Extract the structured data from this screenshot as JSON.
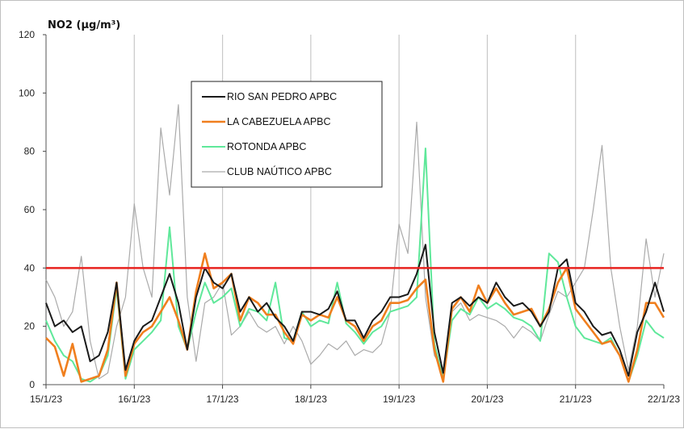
{
  "chart_data": {
    "type": "line",
    "title": "NO2 (µg/m³)",
    "xlabel": "",
    "ylabel": "",
    "ylim": [
      0,
      120
    ],
    "yticks": [
      0,
      20,
      40,
      60,
      80,
      100,
      120
    ],
    "xlim": [
      0,
      7
    ],
    "xtick_labels": [
      "15/1/23",
      "16/1/23",
      "17/1/23",
      "18/1/23",
      "19/1/23",
      "20/1/23",
      "21/1/23",
      "22/1/23"
    ],
    "grid": "vertical",
    "legend_position": "top-left",
    "threshold": {
      "value": 40,
      "color": "#e8231f"
    },
    "series": [
      {
        "name": "RIO SAN PEDRO APBC",
        "color": "#1a1a1a",
        "x": [
          0,
          0.1,
          0.2,
          0.3,
          0.4,
          0.5,
          0.6,
          0.7,
          0.8,
          0.9,
          1,
          1.1,
          1.2,
          1.3,
          1.4,
          1.5,
          1.6,
          1.7,
          1.8,
          1.9,
          2,
          2.1,
          2.2,
          2.3,
          2.4,
          2.5,
          2.6,
          2.7,
          2.8,
          2.9,
          3,
          3.1,
          3.2,
          3.3,
          3.4,
          3.5,
          3.6,
          3.7,
          3.8,
          3.9,
          4,
          4.1,
          4.2,
          4.3,
          4.4,
          4.5,
          4.6,
          4.7,
          4.8,
          4.9,
          5,
          5.1,
          5.2,
          5.3,
          5.4,
          5.5,
          5.6,
          5.7,
          5.8,
          5.9,
          6,
          6.1,
          6.2,
          6.3,
          6.4,
          6.5,
          6.6,
          6.7,
          6.8,
          6.9,
          7
        ],
        "values": [
          28,
          20,
          22,
          18,
          20,
          8,
          10,
          18,
          35,
          5,
          15,
          20,
          22,
          30,
          38,
          28,
          12,
          30,
          40,
          35,
          33,
          38,
          25,
          30,
          25,
          28,
          23,
          20,
          15,
          25,
          25,
          24,
          26,
          32,
          22,
          22,
          16,
          22,
          25,
          30,
          30,
          31,
          38,
          48,
          18,
          4,
          28,
          30,
          27,
          30,
          28,
          35,
          30,
          27,
          28,
          25,
          20,
          25,
          40,
          43,
          28,
          25,
          20,
          17,
          18,
          12,
          3,
          18,
          25,
          35,
          25
        ]
      },
      {
        "name": "LA CABEZUELA APBC",
        "color": "#f07f1e",
        "x": [
          0,
          0.1,
          0.2,
          0.3,
          0.4,
          0.5,
          0.6,
          0.7,
          0.8,
          0.9,
          1,
          1.1,
          1.2,
          1.3,
          1.4,
          1.5,
          1.6,
          1.7,
          1.8,
          1.9,
          2,
          2.1,
          2.2,
          2.3,
          2.4,
          2.5,
          2.6,
          2.7,
          2.8,
          2.9,
          3,
          3.1,
          3.2,
          3.3,
          3.4,
          3.5,
          3.6,
          3.7,
          3.8,
          3.9,
          4,
          4.1,
          4.2,
          4.3,
          4.4,
          4.5,
          4.6,
          4.7,
          4.8,
          4.9,
          5,
          5.1,
          5.2,
          5.3,
          5.4,
          5.5,
          5.6,
          5.7,
          5.8,
          5.9,
          6,
          6.1,
          6.2,
          6.3,
          6.4,
          6.5,
          6.6,
          6.7,
          6.8,
          6.9,
          7
        ],
        "values": [
          16,
          13,
          3,
          14,
          1,
          2,
          3,
          12,
          35,
          3,
          14,
          18,
          20,
          25,
          30,
          22,
          12,
          32,
          45,
          33,
          35,
          38,
          22,
          30,
          28,
          24,
          24,
          18,
          14,
          24,
          22,
          24,
          23,
          30,
          22,
          20,
          15,
          20,
          22,
          28,
          28,
          29,
          33,
          36,
          12,
          1,
          26,
          30,
          25,
          34,
          28,
          33,
          28,
          24,
          25,
          26,
          20,
          26,
          35,
          40,
          26,
          22,
          18,
          14,
          15,
          10,
          1,
          12,
          28,
          28,
          23
        ]
      },
      {
        "name": "ROTONDA APBC",
        "color": "#5fe89a",
        "x": [
          0,
          0.1,
          0.2,
          0.3,
          0.4,
          0.5,
          0.6,
          0.7,
          0.8,
          0.9,
          1,
          1.1,
          1.2,
          1.3,
          1.4,
          1.5,
          1.6,
          1.7,
          1.8,
          1.9,
          2,
          2.1,
          2.2,
          2.3,
          2.4,
          2.5,
          2.6,
          2.7,
          2.8,
          2.9,
          3,
          3.1,
          3.2,
          3.3,
          3.4,
          3.5,
          3.6,
          3.7,
          3.8,
          3.9,
          4,
          4.1,
          4.2,
          4.3,
          4.4,
          4.5,
          4.6,
          4.7,
          4.8,
          4.9,
          5,
          5.1,
          5.2,
          5.3,
          5.4,
          5.5,
          5.6,
          5.7,
          5.8,
          5.9,
          6,
          6.1,
          6.2,
          6.3,
          6.4,
          6.5,
          6.6,
          6.7,
          6.8,
          6.9,
          7
        ],
        "values": [
          22,
          15,
          10,
          8,
          2,
          1,
          3,
          10,
          33,
          2,
          12,
          15,
          18,
          22,
          54,
          20,
          12,
          25,
          35,
          28,
          30,
          33,
          20,
          26,
          25,
          22,
          35,
          16,
          15,
          25,
          20,
          22,
          21,
          35,
          21,
          18,
          14,
          18,
          20,
          25,
          26,
          27,
          30,
          81,
          14,
          2,
          22,
          26,
          24,
          30,
          26,
          28,
          26,
          23,
          22,
          20,
          15,
          45,
          42,
          30,
          20,
          16,
          15,
          14,
          16,
          10,
          1,
          10,
          22,
          18,
          16
        ]
      },
      {
        "name": "CLUB NAÚTICO  APBC",
        "color": "#aaaaaa",
        "x": [
          0,
          0.1,
          0.2,
          0.3,
          0.4,
          0.5,
          0.6,
          0.7,
          0.8,
          0.9,
          1,
          1.1,
          1.2,
          1.3,
          1.4,
          1.5,
          1.6,
          1.7,
          1.8,
          1.9,
          2,
          2.1,
          2.2,
          2.3,
          2.4,
          2.5,
          2.6,
          2.7,
          2.8,
          2.9,
          3,
          3.1,
          3.2,
          3.3,
          3.4,
          3.5,
          3.6,
          3.7,
          3.8,
          3.9,
          4,
          4.1,
          4.2,
          4.3,
          4.4,
          4.5,
          4.6,
          4.7,
          4.8,
          4.9,
          5,
          5.1,
          5.2,
          5.3,
          5.4,
          5.5,
          5.6,
          5.7,
          5.8,
          5.9,
          6,
          6.1,
          6.2,
          6.3,
          6.4,
          6.5,
          6.6,
          6.7,
          6.8,
          6.9,
          7
        ],
        "values": [
          36,
          30,
          20,
          25,
          44,
          15,
          2,
          4,
          20,
          30,
          62,
          40,
          30,
          88,
          65,
          96,
          30,
          8,
          28,
          30,
          35,
          17,
          20,
          25,
          20,
          18,
          20,
          14,
          20,
          15,
          7,
          10,
          14,
          12,
          15,
          10,
          12,
          11,
          14,
          25,
          55,
          45,
          90,
          30,
          10,
          5,
          25,
          28,
          22,
          24,
          23,
          22,
          20,
          16,
          20,
          18,
          15,
          24,
          32,
          30,
          35,
          40,
          60,
          82,
          40,
          20,
          5,
          20,
          50,
          30,
          45
        ]
      }
    ]
  }
}
